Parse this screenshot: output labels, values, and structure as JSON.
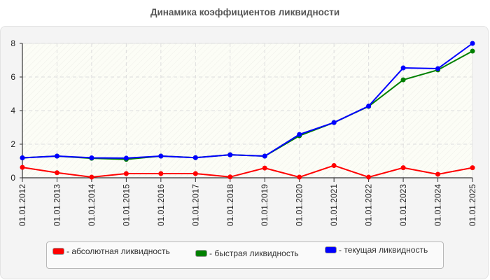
{
  "title": "Динамика коэффициентов ликвидности",
  "legend": {
    "items": [
      {
        "label": "- абсолютная ликвидность",
        "color": "#ff0000"
      },
      {
        "label": "- быстрая ликвидность",
        "color": "#008000"
      },
      {
        "label": "- текущая ликвидность",
        "color": "#0000ff"
      }
    ]
  },
  "chart_data": {
    "type": "line",
    "title": "Динамика коэффициентов ликвидности",
    "xlabel": "",
    "ylabel": "",
    "ylim": [
      0,
      8
    ],
    "yticks": [
      0,
      2,
      4,
      6,
      8
    ],
    "grid": true,
    "legend_position": "bottom",
    "categories": [
      "01.01.2012",
      "01.01.2013",
      "01.01.2014",
      "01.01.2015",
      "01.01.2016",
      "01.01.2017",
      "01.01.2018",
      "01.01.2019",
      "01.01.2020",
      "01.01.2021",
      "01.01.2022",
      "01.01.2023",
      "01.01.2024",
      "01.01.2025"
    ],
    "series": [
      {
        "name": "абсолютная ликвидность",
        "color": "#ff0000",
        "values": [
          0.62,
          0.3,
          0.04,
          0.25,
          0.25,
          0.25,
          0.05,
          0.58,
          0.04,
          0.73,
          0.04,
          0.6,
          0.21,
          0.6
        ]
      },
      {
        "name": "быстрая ликвидность",
        "color": "#008000",
        "values": [
          1.19,
          1.29,
          1.16,
          1.1,
          1.29,
          1.2,
          1.37,
          1.29,
          2.5,
          3.29,
          4.25,
          5.83,
          6.42,
          7.54
        ]
      },
      {
        "name": "текущая ликвидность",
        "color": "#0000ff",
        "values": [
          1.19,
          1.29,
          1.19,
          1.17,
          1.29,
          1.2,
          1.37,
          1.29,
          2.58,
          3.29,
          4.27,
          6.54,
          6.5,
          8.0
        ]
      }
    ]
  }
}
